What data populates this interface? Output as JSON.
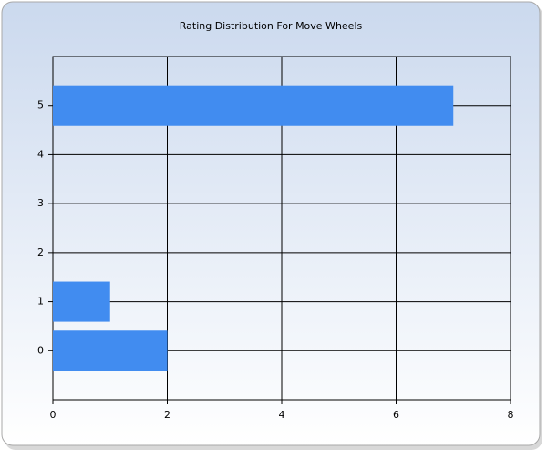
{
  "chart_data": {
    "type": "bar",
    "orientation": "horizontal",
    "title": "Rating Distribution For Move Wheels",
    "categories": [
      "0",
      "1",
      "2",
      "3",
      "4",
      "5"
    ],
    "values": [
      2,
      1,
      0,
      0,
      0,
      7
    ],
    "color": "#418cf0",
    "xlim": [
      0,
      8
    ],
    "xticks": [
      0,
      2,
      4,
      6,
      8
    ],
    "grid": true
  }
}
